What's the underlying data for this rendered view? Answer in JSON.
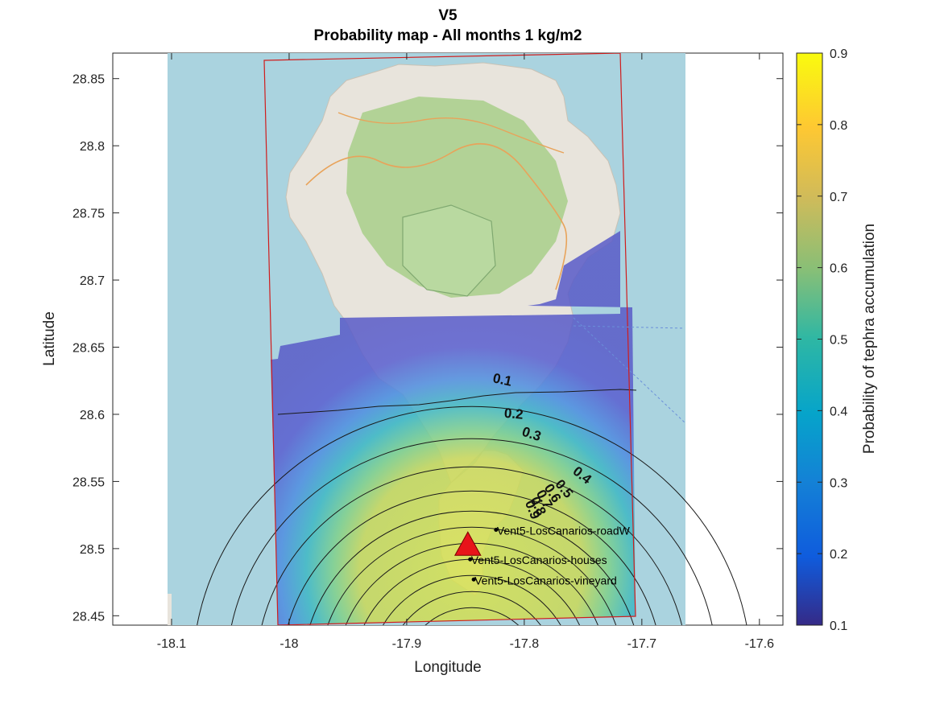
{
  "figure": {
    "title_line1": "V5",
    "title_line2": "Probability map - All months 1 kg/m2"
  },
  "axes": {
    "xlabel": "Longitude",
    "ylabel": "Latitude",
    "xlim": [
      -18.15,
      -17.58
    ],
    "ylim": [
      28.443,
      28.869
    ],
    "xticks": [
      "-18.1",
      "-18",
      "-17.9",
      "-17.8",
      "-17.7",
      "-17.6"
    ],
    "xtick_values": [
      -18.1,
      -18.0,
      -17.9,
      -17.8,
      -17.7,
      -17.6
    ],
    "yticks": [
      "28.45",
      "28.5",
      "28.55",
      "28.6",
      "28.65",
      "28.7",
      "28.75",
      "28.8",
      "28.85"
    ],
    "ytick_values": [
      28.45,
      28.5,
      28.55,
      28.6,
      28.65,
      28.7,
      28.75,
      28.8,
      28.85
    ]
  },
  "colorbar": {
    "label": "Probability of tephra accumulation",
    "min": 0.1,
    "max": 0.9,
    "ticks": [
      "0.1",
      "0.2",
      "0.3",
      "0.4",
      "0.5",
      "0.6",
      "0.7",
      "0.8",
      "0.9"
    ],
    "tick_values": [
      0.1,
      0.2,
      0.3,
      0.4,
      0.5,
      0.6,
      0.7,
      0.8,
      0.9
    ]
  },
  "colors": {
    "sea": "#aad3df",
    "land": "#e8e4dc",
    "vegetation": "#a8cf8a",
    "domain_border": "#d01c1c",
    "vent_marker": "#e8141a",
    "contour": "#222222",
    "low_prob": "#4a4fc7",
    "high_prob": "#d7e04a"
  },
  "contours": {
    "labels": [
      "0.1",
      "0.2",
      "0.3",
      "0.4",
      "0.5",
      "0.6",
      "0.7",
      "0.8",
      "0.9"
    ]
  },
  "vent": {
    "name": "V5",
    "lon": -17.848,
    "lat": 28.498
  },
  "sites": [
    {
      "label": "Vent5-LosCanarios-roadW",
      "lon": -17.824,
      "lat": 28.514
    },
    {
      "label": "Vent5-LosCanarios-houses",
      "lon": -17.846,
      "lat": 28.492
    },
    {
      "label": "Vent5-LosCanarios-vineyard",
      "lon": -17.843,
      "lat": 28.477
    }
  ]
}
